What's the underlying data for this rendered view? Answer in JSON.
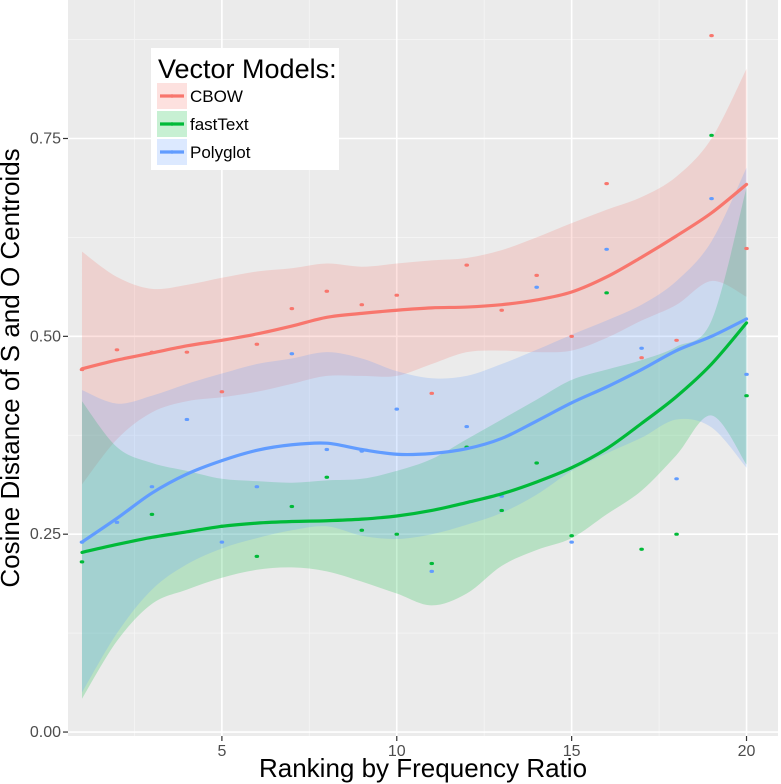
{
  "chart_data": {
    "type": "scatter",
    "xlabel": "Ranking by Frequency Ratio",
    "ylabel": "Cosine Distance of S and O Centroids",
    "xlim": [
      0.6,
      20.9
    ],
    "ylim": [
      -0.005,
      0.925
    ],
    "x_ticks": [
      5,
      10,
      15,
      20
    ],
    "x_tick_labels": [
      "5",
      "10",
      "15",
      "20"
    ],
    "y_ticks": [
      0,
      0.25,
      0.5,
      0.75
    ],
    "y_tick_labels": [
      "0.00",
      "0.25",
      "0.50",
      "0.75"
    ],
    "grid": true,
    "panel_background": "#ebebeb",
    "legend": {
      "title": "Vector Models:",
      "position": "top-left",
      "entries": [
        "CBOW",
        "fastText",
        "Polyglot"
      ]
    },
    "series": [
      {
        "name": "CBOW",
        "color": "#f8766d",
        "points": [
          [
            1,
            0.458
          ],
          [
            2,
            0.483
          ],
          [
            3,
            0.48
          ],
          [
            4,
            0.48
          ],
          [
            5,
            0.43
          ],
          [
            6,
            0.49
          ],
          [
            7,
            0.535
          ],
          [
            8,
            0.557
          ],
          [
            9,
            0.54
          ],
          [
            10,
            0.552
          ],
          [
            11,
            0.428
          ],
          [
            12,
            0.59
          ],
          [
            13,
            0.533
          ],
          [
            14,
            0.577
          ],
          [
            15,
            0.5
          ],
          [
            16,
            0.693
          ],
          [
            17,
            0.473
          ],
          [
            18,
            0.495
          ],
          [
            19,
            0.88
          ],
          [
            20,
            0.611
          ]
        ],
        "smooth": [
          [
            1,
            0.459
          ],
          [
            2,
            0.47
          ],
          [
            3,
            0.479
          ],
          [
            4,
            0.488
          ],
          [
            5,
            0.495
          ],
          [
            6,
            0.503
          ],
          [
            7,
            0.513
          ],
          [
            8,
            0.524
          ],
          [
            9,
            0.529
          ],
          [
            10,
            0.533
          ],
          [
            11,
            0.536
          ],
          [
            12,
            0.537
          ],
          [
            13,
            0.54
          ],
          [
            14,
            0.546
          ],
          [
            15,
            0.556
          ],
          [
            16,
            0.575
          ],
          [
            17,
            0.6
          ],
          [
            18,
            0.627
          ],
          [
            19,
            0.656
          ],
          [
            20,
            0.692
          ]
        ],
        "band_upper": [
          0.607,
          0.575,
          0.56,
          0.565,
          0.574,
          0.582,
          0.586,
          0.592,
          0.588,
          0.592,
          0.596,
          0.599,
          0.609,
          0.625,
          0.643,
          0.66,
          0.676,
          0.702,
          0.75,
          0.838
        ],
        "band_lower": [
          0.313,
          0.37,
          0.404,
          0.418,
          0.423,
          0.43,
          0.44,
          0.45,
          0.45,
          0.45,
          0.465,
          0.48,
          0.482,
          0.48,
          0.482,
          0.498,
          0.52,
          0.54,
          0.57,
          0.55
        ]
      },
      {
        "name": "fastText",
        "color": "#00ba38",
        "points": [
          [
            1,
            0.215
          ],
          [
            3,
            0.275
          ],
          [
            5,
            0.26
          ],
          [
            6,
            0.222
          ],
          [
            7,
            0.285
          ],
          [
            8,
            0.322
          ],
          [
            9,
            0.255
          ],
          [
            10,
            0.25
          ],
          [
            11,
            0.213
          ],
          [
            12,
            0.36
          ],
          [
            13,
            0.28
          ],
          [
            14,
            0.34
          ],
          [
            15,
            0.248
          ],
          [
            16,
            0.555
          ],
          [
            17,
            0.231
          ],
          [
            18,
            0.25
          ],
          [
            19,
            0.754
          ],
          [
            20,
            0.425
          ]
        ],
        "smooth": [
          [
            1,
            0.227
          ],
          [
            2,
            0.237
          ],
          [
            3,
            0.246
          ],
          [
            4,
            0.253
          ],
          [
            5,
            0.26
          ],
          [
            6,
            0.264
          ],
          [
            7,
            0.266
          ],
          [
            8,
            0.267
          ],
          [
            9,
            0.269
          ],
          [
            10,
            0.273
          ],
          [
            11,
            0.28
          ],
          [
            12,
            0.29
          ],
          [
            13,
            0.301
          ],
          [
            14,
            0.316
          ],
          [
            15,
            0.334
          ],
          [
            16,
            0.358
          ],
          [
            17,
            0.39
          ],
          [
            18,
            0.424
          ],
          [
            19,
            0.465
          ],
          [
            20,
            0.517
          ]
        ],
        "band_upper": [
          0.418,
          0.36,
          0.34,
          0.33,
          0.32,
          0.317,
          0.315,
          0.318,
          0.32,
          0.33,
          0.345,
          0.37,
          0.395,
          0.42,
          0.445,
          0.458,
          0.47,
          0.487,
          0.52,
          0.688
        ],
        "band_lower": [
          0.042,
          0.115,
          0.162,
          0.18,
          0.195,
          0.205,
          0.208,
          0.203,
          0.19,
          0.175,
          0.16,
          0.175,
          0.21,
          0.23,
          0.245,
          0.275,
          0.305,
          0.35,
          0.4,
          0.338
        ]
      },
      {
        "name": "Polyglot",
        "color": "#619cff",
        "points": [
          [
            1,
            0.24
          ],
          [
            2,
            0.265
          ],
          [
            3,
            0.31
          ],
          [
            4,
            0.395
          ],
          [
            5,
            0.24
          ],
          [
            6,
            0.31
          ],
          [
            7,
            0.478
          ],
          [
            8,
            0.357
          ],
          [
            9,
            0.355
          ],
          [
            10,
            0.408
          ],
          [
            11,
            0.203
          ],
          [
            12,
            0.386
          ],
          [
            13,
            0.298
          ],
          [
            14,
            0.562
          ],
          [
            15,
            0.24
          ],
          [
            16,
            0.61
          ],
          [
            17,
            0.485
          ],
          [
            18,
            0.32
          ],
          [
            19,
            0.674
          ],
          [
            20,
            0.452
          ]
        ],
        "smooth": [
          [
            1,
            0.24
          ],
          [
            2,
            0.27
          ],
          [
            3,
            0.302
          ],
          [
            4,
            0.326
          ],
          [
            5,
            0.343
          ],
          [
            6,
            0.356
          ],
          [
            7,
            0.363
          ],
          [
            8,
            0.365
          ],
          [
            9,
            0.357
          ],
          [
            10,
            0.351
          ],
          [
            11,
            0.352
          ],
          [
            12,
            0.358
          ],
          [
            13,
            0.371
          ],
          [
            14,
            0.393
          ],
          [
            15,
            0.416
          ],
          [
            16,
            0.436
          ],
          [
            17,
            0.458
          ],
          [
            18,
            0.482
          ],
          [
            19,
            0.5
          ],
          [
            20,
            0.522
          ]
        ],
        "band_upper": [
          0.432,
          0.415,
          0.425,
          0.44,
          0.453,
          0.465,
          0.472,
          0.48,
          0.472,
          0.456,
          0.447,
          0.45,
          0.465,
          0.483,
          0.502,
          0.52,
          0.54,
          0.57,
          0.62,
          0.713
        ],
        "band_lower": [
          0.05,
          0.125,
          0.18,
          0.212,
          0.232,
          0.245,
          0.255,
          0.26,
          0.248,
          0.244,
          0.25,
          0.262,
          0.277,
          0.3,
          0.33,
          0.352,
          0.372,
          0.395,
          0.385,
          0.334
        ]
      }
    ]
  }
}
